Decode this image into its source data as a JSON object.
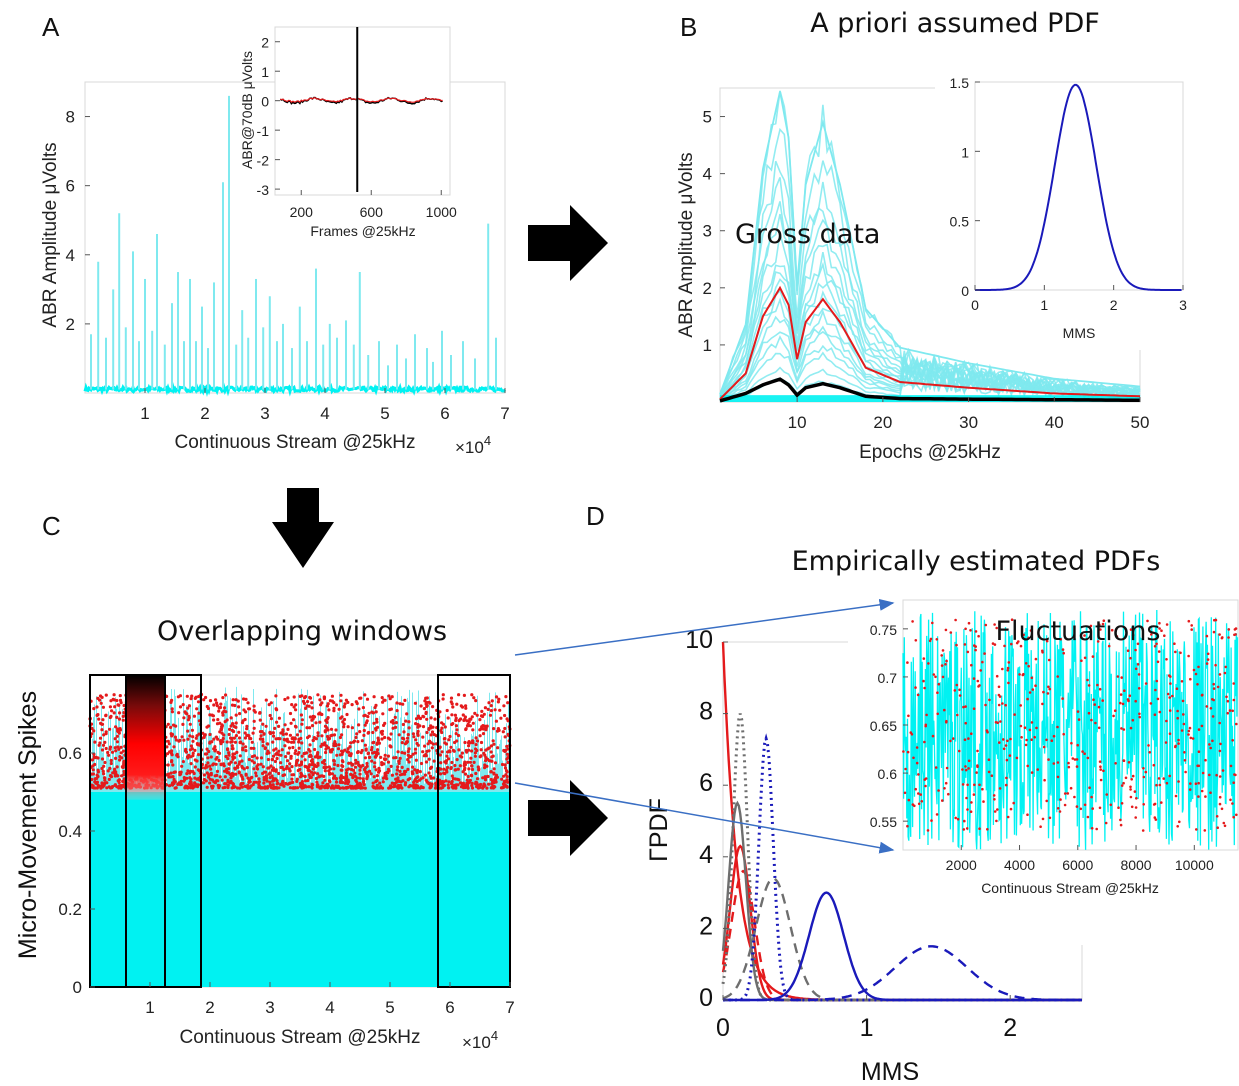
{
  "labels": {
    "panel_a": "A",
    "panel_b": "B",
    "panel_c": "C",
    "panel_d": "D",
    "title_b": "A priori assumed PDF",
    "title_c": "Overlapping windows",
    "title_d": "Empirically estimated PDFs",
    "ann_b": "Gross data",
    "ann_d": "Fluctuations"
  },
  "colors": {
    "cyan": "#00f2f2",
    "cyan_light": "#7fe9ef",
    "red": "#e41a1c",
    "dark_red": "#8b1a1a",
    "blue": "#1a1aba",
    "gray": "#6e6e6e",
    "black": "#000000"
  },
  "chart_data": [
    {
      "id": "A",
      "type": "line",
      "xlabel": "Continuous Stream @25kHz",
      "ylabel": "ABR Amplitude μVolts",
      "x_multiplier": "×10^4",
      "xlim": [
        0,
        7
      ],
      "ylim": [
        0,
        9
      ],
      "xticks": [
        1,
        2,
        3,
        4,
        5,
        6,
        7
      ],
      "yticks": [
        2,
        4,
        6,
        8
      ],
      "spikes": [
        {
          "x": 0.1,
          "y": 1.7
        },
        {
          "x": 0.22,
          "y": 3.8
        },
        {
          "x": 0.35,
          "y": 1.6
        },
        {
          "x": 0.47,
          "y": 3.0
        },
        {
          "x": 0.57,
          "y": 5.2
        },
        {
          "x": 0.68,
          "y": 1.9
        },
        {
          "x": 0.8,
          "y": 4.1
        },
        {
          "x": 0.9,
          "y": 1.5
        },
        {
          "x": 1.0,
          "y": 3.3
        },
        {
          "x": 1.12,
          "y": 1.8
        },
        {
          "x": 1.2,
          "y": 4.6
        },
        {
          "x": 1.33,
          "y": 1.4
        },
        {
          "x": 1.45,
          "y": 2.6
        },
        {
          "x": 1.55,
          "y": 3.5
        },
        {
          "x": 1.65,
          "y": 1.5
        },
        {
          "x": 1.75,
          "y": 3.3
        },
        {
          "x": 1.85,
          "y": 1.5
        },
        {
          "x": 1.95,
          "y": 2.5
        },
        {
          "x": 2.05,
          "y": 1.3
        },
        {
          "x": 2.15,
          "y": 3.2
        },
        {
          "x": 2.3,
          "y": 6.1
        },
        {
          "x": 2.4,
          "y": 8.6
        },
        {
          "x": 2.52,
          "y": 1.4
        },
        {
          "x": 2.62,
          "y": 2.4
        },
        {
          "x": 2.72,
          "y": 1.6
        },
        {
          "x": 2.85,
          "y": 3.3
        },
        {
          "x": 2.97,
          "y": 1.9
        },
        {
          "x": 3.08,
          "y": 2.8
        },
        {
          "x": 3.2,
          "y": 1.5
        },
        {
          "x": 3.3,
          "y": 2.0
        },
        {
          "x": 3.45,
          "y": 1.3
        },
        {
          "x": 3.58,
          "y": 2.5
        },
        {
          "x": 3.7,
          "y": 1.5
        },
        {
          "x": 3.85,
          "y": 3.6
        },
        {
          "x": 3.97,
          "y": 1.4
        },
        {
          "x": 4.08,
          "y": 2.0
        },
        {
          "x": 4.2,
          "y": 1.6
        },
        {
          "x": 4.35,
          "y": 2.1
        },
        {
          "x": 4.48,
          "y": 1.4
        },
        {
          "x": 4.58,
          "y": 3.5
        },
        {
          "x": 4.72,
          "y": 1.1
        },
        {
          "x": 4.9,
          "y": 1.5
        },
        {
          "x": 5.05,
          "y": 0.8
        },
        {
          "x": 5.2,
          "y": 1.4
        },
        {
          "x": 5.35,
          "y": 1.0
        },
        {
          "x": 5.5,
          "y": 1.7
        },
        {
          "x": 5.7,
          "y": 1.3
        },
        {
          "x": 5.8,
          "y": 0.9
        },
        {
          "x": 5.95,
          "y": 1.8
        },
        {
          "x": 6.1,
          "y": 1.1
        },
        {
          "x": 6.3,
          "y": 1.5
        },
        {
          "x": 6.5,
          "y": 1.0
        },
        {
          "x": 6.72,
          "y": 4.9
        },
        {
          "x": 6.85,
          "y": 1.6
        }
      ],
      "inset": {
        "xlabel": "Frames @25kHz",
        "ylabel": "ABR@70dB μVolts",
        "xlim": [
          50,
          1050
        ],
        "ylim": [
          -3.2,
          2.5
        ],
        "xticks": [
          200,
          600,
          1000
        ],
        "yticks": [
          -3,
          -2,
          -1,
          0,
          1,
          2
        ],
        "spike_x": 520
      }
    },
    {
      "id": "B",
      "type": "line",
      "title": "A priori assumed PDF",
      "xlabel": "Epochs @25kHz",
      "ylabel": "ABR Amplitude μVolts",
      "xlim": [
        1,
        50
      ],
      "ylim": [
        0,
        5.5
      ],
      "xticks": [
        10,
        20,
        30,
        40,
        50
      ],
      "yticks": [
        1,
        2,
        3,
        4,
        5
      ],
      "annotation": "Gross data",
      "mean_curve": {
        "x": [
          1,
          4,
          6,
          8,
          9,
          10,
          11,
          13,
          15,
          18,
          22,
          30,
          40,
          50
        ],
        "y": [
          0.05,
          0.5,
          1.5,
          2.0,
          1.7,
          0.75,
          1.4,
          1.8,
          1.4,
          0.6,
          0.35,
          0.25,
          0.15,
          0.1
        ]
      },
      "median_curve": {
        "x": [
          1,
          4,
          6,
          8,
          9,
          10,
          11,
          13,
          15,
          18,
          22,
          30,
          40,
          50
        ],
        "y": [
          0.02,
          0.15,
          0.3,
          0.4,
          0.3,
          0.12,
          0.25,
          0.32,
          0.25,
          0.1,
          0.06,
          0.05,
          0.04,
          0.03
        ]
      },
      "inset": {
        "xlabel": "MMS",
        "xlim": [
          0,
          3
        ],
        "ylim": [
          0,
          1.5
        ],
        "xticks": [
          0,
          1,
          2,
          3
        ],
        "yticks": [
          0,
          0.5,
          1,
          1.5
        ],
        "gaussian_mean": 1.45,
        "gaussian_peak": 1.48,
        "gaussian_sd": 0.3
      }
    },
    {
      "id": "C",
      "type": "scatter",
      "title": "Overlapping windows",
      "xlabel": "Continuous Stream @25kHz",
      "ylabel": "Micro-Movement Spikes",
      "x_multiplier": "×10^4",
      "xlim": [
        0,
        7
      ],
      "ylim": [
        0,
        0.8
      ],
      "xticks": [
        1,
        2,
        3,
        4,
        5,
        6,
        7
      ],
      "yticks": [
        0,
        0.2,
        0.4,
        0.6
      ],
      "baseline": 0.5,
      "spike_range": [
        0.5,
        0.75
      ],
      "windows": [
        [
          0,
          1.25
        ],
        [
          0.6,
          1.85
        ],
        [
          5.8,
          7.0
        ]
      ]
    },
    {
      "id": "D",
      "type": "line",
      "title": "Empirically estimated PDFs",
      "xlabel": "MMS",
      "ylabel": "ΓPDF",
      "xlim": [
        0,
        2.5
      ],
      "ylim": [
        0,
        10
      ],
      "xticks": [
        0,
        1,
        2
      ],
      "yticks": [
        0,
        2,
        4,
        6,
        8,
        10
      ],
      "curves": [
        {
          "style": "solid",
          "color": "red",
          "kind": "gamma",
          "shape": 1.0,
          "scale": 0.1,
          "peak": 10
        },
        {
          "style": "solid",
          "color": "red",
          "kind": "gauss",
          "mean": 0.12,
          "sd": 0.07,
          "peak": 4.3
        },
        {
          "style": "dashed",
          "color": "red",
          "kind": "gauss",
          "mean": 0.14,
          "sd": 0.08,
          "peak": 3.6
        },
        {
          "style": "dotted",
          "color": "gray",
          "kind": "gauss",
          "mean": 0.12,
          "sd": 0.05,
          "peak": 8.0
        },
        {
          "style": "solid",
          "color": "gray",
          "kind": "gauss",
          "mean": 0.1,
          "sd": 0.06,
          "peak": 5.5
        },
        {
          "style": "dashed",
          "color": "gray",
          "kind": "gauss",
          "mean": 0.35,
          "sd": 0.12,
          "peak": 3.4
        },
        {
          "style": "dotted",
          "color": "blue",
          "kind": "gauss",
          "mean": 0.3,
          "sd": 0.05,
          "peak": 7.3
        },
        {
          "style": "solid",
          "color": "blue",
          "kind": "gauss",
          "mean": 0.72,
          "sd": 0.12,
          "peak": 3.0
        },
        {
          "style": "dashed",
          "color": "blue",
          "kind": "gauss",
          "mean": 1.45,
          "sd": 0.25,
          "peak": 1.5
        }
      ],
      "inset": {
        "annotation": "Fluctuations",
        "xlabel": "Continuous Stream @25kHz",
        "xlim": [
          0,
          11500
        ],
        "ylim": [
          0.52,
          0.78
        ],
        "xticks": [
          2000,
          4000,
          6000,
          8000,
          10000
        ],
        "yticks": [
          0.55,
          0.6,
          0.65,
          0.7,
          0.75
        ]
      }
    }
  ]
}
